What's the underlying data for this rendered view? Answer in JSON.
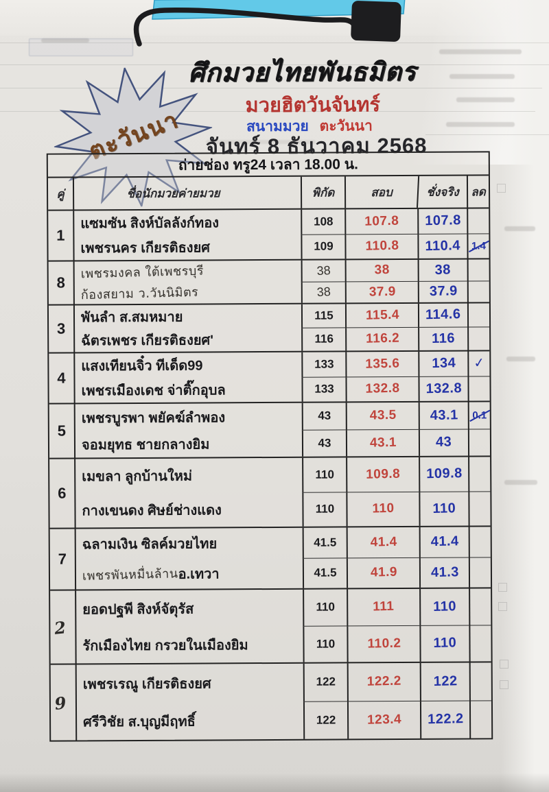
{
  "header": {
    "promotion": "ศึกมวยไทยพันธมิตร",
    "event": "มวยฮิตวันจันทร์",
    "venue_label": "สนามมวย",
    "venue_name": "ตะวันนา",
    "date": "จันทร์ 8 ธันวาคม 2568",
    "stamp": "ตะวันนา",
    "broadcast": "ถ่ายช่อง ทรู24 เวลา 18.00 น."
  },
  "table": {
    "columns": {
      "pair": "คู่",
      "boxer": "ชื่อนักมวย",
      "camp": "ค่ายมวย",
      "limit": "พิกัด",
      "trial": "สอบ",
      "actual": "ชั่งจริง",
      "cut": "ลด"
    },
    "pairs": [
      {
        "no": "1",
        "no_hand": false,
        "fighters": [
          {
            "name": [
              {
                "t": "แซมซัน สิงห์บัลลังก์ทอง",
                "hand": false
              }
            ],
            "limit": "108",
            "limit_hand": false,
            "trial": "107.8",
            "actual": "107.8",
            "cut": "",
            "cut_struck": false
          },
          {
            "name": [
              {
                "t": "เพชรนคร เกียรติธงยศ",
                "hand": false
              }
            ],
            "limit": "109",
            "limit_hand": false,
            "trial": "110.8",
            "actual": "110.4",
            "cut": "1.4",
            "cut_struck": true
          }
        ]
      },
      {
        "no": "8",
        "no_hand": false,
        "fighters": [
          {
            "name": [
              {
                "t": "เพชรมงคล  ใต้เพชรบุรี",
                "hand": true
              }
            ],
            "limit": "38",
            "limit_hand": true,
            "trial": "38",
            "actual": "38",
            "cut": "",
            "cut_struck": false
          },
          {
            "name": [
              {
                "t": "ก้องสยาม  ว.วันนิมิตร",
                "hand": true
              }
            ],
            "limit": "38",
            "limit_hand": true,
            "trial": "37.9",
            "actual": "37.9",
            "cut": "",
            "cut_struck": false
          }
        ]
      },
      {
        "no": "3",
        "no_hand": false,
        "fighters": [
          {
            "name": [
              {
                "t": "พันลำ ส.สมหมาย",
                "hand": false
              }
            ],
            "limit": "115",
            "limit_hand": false,
            "trial": "115.4",
            "actual": "114.6",
            "cut": "",
            "cut_struck": false
          },
          {
            "name": [
              {
                "t": "ฉัตรเพชร เกียรติธงยศ'",
                "hand": false
              }
            ],
            "limit": "116",
            "limit_hand": false,
            "trial": "116.2",
            "actual": "116",
            "cut": "",
            "cut_struck": false
          }
        ]
      },
      {
        "no": "4",
        "no_hand": false,
        "fighters": [
          {
            "name": [
              {
                "t": "แสงเทียนจิ๋ว ทีเด็ด99",
                "hand": false
              }
            ],
            "limit": "133",
            "limit_hand": false,
            "trial": "135.6",
            "actual": "134",
            "cut": "✓",
            "cut_struck": false
          },
          {
            "name": [
              {
                "t": "เพชรเมืองเดช จ่าติ๊กอุบล",
                "hand": false
              }
            ],
            "limit": "133",
            "limit_hand": false,
            "trial": "132.8",
            "actual": "132.8",
            "cut": "",
            "cut_struck": false
          }
        ]
      },
      {
        "no": "5",
        "no_hand": false,
        "fighters": [
          {
            "name": [
              {
                "t": "เพชรบูรพา พยัคฆ์ลำพอง",
                "hand": false
              }
            ],
            "limit": "43",
            "limit_hand": false,
            "trial": "43.5",
            "actual": "43.1",
            "cut": "0.1",
            "cut_struck": true
          },
          {
            "name": [
              {
                "t": "จอมยุทธ ชายกลางยิม",
                "hand": false
              }
            ],
            "limit": "43",
            "limit_hand": false,
            "trial": "43.1",
            "actual": "43",
            "cut": "",
            "cut_struck": false
          }
        ]
      },
      {
        "no": "6",
        "no_hand": false,
        "fighters": [
          {
            "name": [
              {
                "t": "เมขลา ลูกบ้านใหม่",
                "hand": false
              }
            ],
            "limit": "110",
            "limit_hand": false,
            "trial": "109.8",
            "actual": "109.8",
            "cut": "",
            "cut_struck": false
          },
          {
            "name": [
              {
                "t": "กางเขนดง ศิษย์ช่างแดง",
                "hand": false
              }
            ],
            "limit": "110",
            "limit_hand": false,
            "trial": "110",
            "actual": "110",
            "cut": "",
            "cut_struck": false
          }
        ]
      },
      {
        "no": "7",
        "no_hand": false,
        "fighters": [
          {
            "name": [
              {
                "t": "ฉลามเงิน ซิลค์มวยไทย",
                "hand": false
              }
            ],
            "limit": "41.5",
            "limit_hand": false,
            "trial": "41.4",
            "actual": "41.4",
            "cut": "",
            "cut_struck": false
          },
          {
            "name": [
              {
                "t": "เพชรพันหมื่นล้าน",
                "hand": true
              },
              {
                "t": "อ.เทวา",
                "hand": false
              }
            ],
            "limit": "41.5",
            "limit_hand": false,
            "trial": "41.9",
            "actual": "41.3",
            "cut": "",
            "cut_struck": false
          }
        ]
      },
      {
        "no": "2",
        "no_hand": true,
        "fighters": [
          {
            "name": [
              {
                "t": "ยอดปฐพี สิงห์จัตุรัส",
                "hand": false
              }
            ],
            "limit": "110",
            "limit_hand": false,
            "trial": "111",
            "actual": "110",
            "cut": "",
            "cut_struck": false
          },
          {
            "name": [
              {
                "t": "รักเมืองไทย กรวยในเมืองยิม",
                "hand": false
              }
            ],
            "limit": "110",
            "limit_hand": false,
            "trial": "110.2",
            "actual": "110",
            "cut": "",
            "cut_struck": false
          }
        ]
      },
      {
        "no": "9",
        "no_hand": true,
        "fighters": [
          {
            "name": [
              {
                "t": "เพชรเรณู เกียรติธงยศ",
                "hand": false
              }
            ],
            "limit": "122",
            "limit_hand": false,
            "trial": "122.2",
            "actual": "122",
            "cut": "",
            "cut_struck": false
          },
          {
            "name": [
              {
                "t": "ศรีวิชัย ส.บุญมีฤทธิ์",
                "hand": false
              }
            ],
            "limit": "122",
            "limit_hand": false,
            "trial": "123.4",
            "actual": "122.2",
            "cut": "",
            "cut_struck": false
          }
        ]
      }
    ]
  },
  "ink": {
    "print_black": "#1b1b1e",
    "hand_black": "#35322d",
    "trial_red": "#c0443c",
    "actual_blue": "#2433a6",
    "event_red": "#b43531",
    "venue_blue": "#2a49c0",
    "stamp_brown": "#74441e",
    "clipboard_blue": "#62c9e8"
  }
}
